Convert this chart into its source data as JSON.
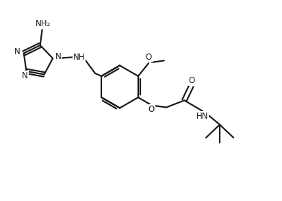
{
  "bg_color": "#ffffff",
  "line_color": "#1a1a1a",
  "line_width": 1.6,
  "font_size": 8.5,
  "fig_w": 4.12,
  "fig_h": 2.93,
  "dpi": 100,
  "xlim": [
    0,
    11
  ],
  "ylim": [
    0,
    8
  ]
}
